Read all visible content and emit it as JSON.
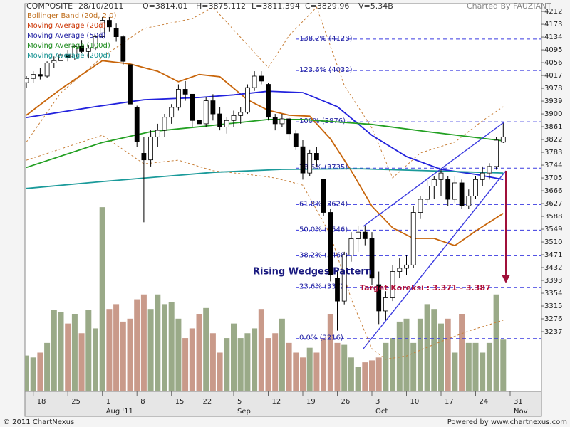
{
  "chart_data": {
    "type": "candlestick",
    "header": {
      "symbol": "COMPOSITE",
      "date": "28/10/2011",
      "open": "O=3814.01",
      "high": "H=3875.112",
      "low": "L=3811.394",
      "close": "C=3829.96",
      "volume": "V=5.34B",
      "credit": "Charted By FAUZIANT"
    },
    "footer": {
      "left": "© 2011 ChartNexus",
      "right": "Powered by www.chartnexus.com"
    },
    "annotations": {
      "pattern": "Rising Wedges Pattern",
      "target": "Target Koreksi : 3.371 - 3.387"
    },
    "categories": [
      null,
      "18",
      null,
      null,
      null,
      null,
      "25",
      null,
      null,
      null,
      null,
      "1",
      null,
      null,
      null,
      null,
      "8",
      null,
      null,
      null,
      null,
      "15",
      null,
      null,
      null,
      "22",
      null,
      null,
      null,
      null,
      "5",
      null,
      null,
      null,
      null,
      "12",
      null,
      null,
      null,
      null,
      "19",
      null,
      null,
      null,
      null,
      "26",
      null,
      null,
      null,
      null,
      "3",
      null,
      null,
      null,
      null,
      "10",
      null,
      null,
      null,
      null,
      "17",
      null,
      null,
      null,
      null,
      "24",
      null,
      null,
      null,
      null,
      "31"
    ],
    "months": [
      null,
      null,
      null,
      null,
      null,
      null,
      null,
      null,
      null,
      null,
      null,
      "Aug '11",
      null,
      null,
      null,
      null,
      null,
      null,
      null,
      null,
      null,
      null,
      null,
      null,
      null,
      null,
      null,
      null,
      null,
      null,
      "Sep",
      null,
      null,
      null,
      null,
      null,
      null,
      null,
      null,
      null,
      null,
      null,
      null,
      null,
      null,
      null,
      null,
      null,
      null,
      null,
      "Oct",
      null,
      null,
      null,
      null,
      null,
      null,
      null,
      null,
      null,
      null,
      null,
      null,
      null,
      null,
      null,
      null,
      null,
      null,
      null,
      "Nov"
    ],
    "open": [
      3995,
      4008,
      4020,
      4015,
      4055,
      4062,
      4080,
      4070,
      4105,
      4090,
      4100,
      4135,
      4185,
      4160,
      4135,
      4050,
      3920,
      3780,
      3760,
      3830,
      3850,
      3890,
      3920,
      3975,
      3960,
      3880,
      3870,
      3940,
      3900,
      3860,
      3880,
      3895,
      3905,
      3980,
      4015,
      3990,
      3890,
      3870,
      3885,
      3840,
      3800,
      3720,
      3780,
      3700,
      3600,
      3400,
      3330,
      3470,
      3520,
      3540,
      3520,
      3380,
      3300,
      3340,
      3420,
      3430,
      3440,
      3600,
      3640,
      3680,
      3700,
      3700,
      3640,
      3690,
      3620,
      3650,
      3700,
      3720,
      3740,
      3814.01,
      null
    ],
    "high": [
      4015,
      4030,
      4040,
      4060,
      4075,
      4085,
      4095,
      4110,
      4125,
      4110,
      4140,
      4195,
      4195,
      4175,
      4140,
      4055,
      3925,
      3830,
      3850,
      3870,
      3900,
      3930,
      3990,
      4000,
      3960,
      3900,
      3950,
      3960,
      3920,
      3890,
      3910,
      3920,
      3990,
      4030,
      4030,
      3995,
      3900,
      3900,
      3890,
      3850,
      3820,
      3790,
      3800,
      3700,
      3610,
      3420,
      3480,
      3540,
      3560,
      3560,
      3540,
      3420,
      3360,
      3440,
      3460,
      3470,
      3620,
      3650,
      3700,
      3710,
      3730,
      3710,
      3710,
      3700,
      3670,
      3710,
      3740,
      3750,
      3830,
      3875.112,
      null
    ],
    "low": [
      3980,
      3995,
      4005,
      4010,
      4040,
      4050,
      4060,
      4065,
      4085,
      4070,
      4095,
      4130,
      4150,
      4120,
      4050,
      3920,
      3800,
      3570,
      3740,
      3800,
      3830,
      3870,
      3910,
      3940,
      3860,
      3840,
      3860,
      3880,
      3850,
      3840,
      3860,
      3870,
      3900,
      3970,
      3990,
      3880,
      3850,
      3860,
      3820,
      3790,
      3700,
      3710,
      3740,
      3590,
      3390,
      3240,
      3320,
      3450,
      3480,
      3500,
      3380,
      3260,
      3270,
      3330,
      3400,
      3410,
      3430,
      3580,
      3630,
      3640,
      3650,
      3620,
      3630,
      3610,
      3610,
      3640,
      3680,
      3700,
      3730,
      3811.394,
      null
    ],
    "close": [
      4008,
      4020,
      4015,
      4055,
      4062,
      4080,
      4070,
      4105,
      4090,
      4100,
      4135,
      4185,
      4165,
      4135,
      4060,
      3930,
      3815,
      3760,
      3830,
      3850,
      3890,
      3920,
      3975,
      3960,
      3880,
      3870,
      3940,
      3900,
      3860,
      3880,
      3895,
      3905,
      3980,
      4015,
      4000,
      3890,
      3870,
      3885,
      3840,
      3800,
      3720,
      3780,
      3760,
      3600,
      3410,
      3330,
      3470,
      3520,
      3540,
      3520,
      3400,
      3300,
      3340,
      3420,
      3430,
      3440,
      3600,
      3640,
      3680,
      3700,
      3720,
      3640,
      3690,
      3620,
      3650,
      3700,
      3720,
      3740,
      3820,
      3829.96,
      null
    ],
    "volume": [
      3.7,
      3.5,
      4.0,
      5.0,
      8.4,
      8.2,
      7.0,
      8.0,
      6.0,
      8.4,
      6.5,
      19.0,
      8.5,
      9.0,
      7.2,
      7.5,
      9.5,
      10.0,
      8.5,
      10.0,
      9.0,
      9.2,
      7.5,
      5.5,
      6.5,
      8.0,
      8.6,
      6.0,
      4.0,
      5.5,
      7.0,
      5.5,
      6.0,
      6.5,
      8.5,
      5.5,
      6.0,
      7.5,
      5.0,
      4.0,
      3.5,
      4.5,
      4.0,
      5.5,
      8.0,
      5.0,
      4.8,
      3.5,
      2.5,
      3.0,
      3.2,
      3.5,
      5.0,
      5.5,
      7.2,
      7.5,
      5.0,
      7.5,
      9.0,
      8.5,
      7.0,
      7.5,
      4.0,
      8.0,
      5.0,
      5.0,
      4.0,
      5.0,
      10.0,
      5.34,
      null
    ],
    "up_color": "#ffffff",
    "down_color": "#000000",
    "volume_up_color": "#9aaa88",
    "volume_down_color": "#c99a8a",
    "ylim": [
      3055,
      4236
    ],
    "vlim": [
      0,
      40
    ],
    "yticks": [
      3237,
      3276,
      3315,
      3354,
      3393,
      3432,
      3471,
      3510,
      3549,
      3588,
      3627,
      3666,
      3705,
      3744,
      3783,
      3822,
      3861,
      3900,
      3939,
      3978,
      4017,
      4056,
      4095,
      4134,
      4173,
      4212
    ],
    "series": [
      {
        "name": "Bollinger Band (20d, 2.0)",
        "color": "#c8803a",
        "legend_color": "#c07020",
        "dashed": true,
        "bands": [
          {
            "x": [
              0,
              5,
              11,
              17,
              24,
              27,
              35,
              38,
              42,
              46,
              50,
              53,
              57,
              62,
              66,
              69
            ],
            "values": [
              3814,
              3965,
              4073,
              4160,
              4190,
              4225,
              4041,
              4138,
              4225,
              3987,
              3857,
              3705,
              3781,
              3814,
              3879,
              3922
            ]
          },
          {
            "x": [
              0,
              11,
              17,
              22,
              27,
              32,
              36,
              40,
              44,
              47,
              50,
              52,
              55,
              60,
              64,
              69
            ],
            "values": [
              3759,
              3835,
              3748,
              3759,
              3727,
              3716,
              3705,
              3683,
              3532,
              3337,
              3185,
              3153,
              3163,
              3207,
              3239,
              3272
            ]
          }
        ]
      },
      {
        "name": "Moving Average (20d)",
        "color": "#c8650a",
        "legend_color": "#cc3300",
        "x": [
          0,
          5,
          11,
          15,
          19,
          22,
          25,
          28,
          32,
          35,
          38,
          41,
          44,
          47,
          50,
          53,
          56,
          59,
          62,
          65,
          69
        ],
        "values": [
          3896,
          3976,
          4062,
          4052,
          4030,
          3998,
          4020,
          4013,
          3943,
          3911,
          3896,
          3893,
          3824,
          3727,
          3619,
          3553,
          3521,
          3521,
          3499,
          3543,
          3597
        ]
      },
      {
        "name": "Moving Average (50d)",
        "color": "#2222dd",
        "legend_color": "#1a1aa0",
        "x": [
          0,
          10,
          17,
          25,
          30,
          35,
          40,
          45,
          50,
          55,
          60,
          65,
          69
        ],
        "values": [
          3889,
          3922,
          3943,
          3950,
          3958,
          3969,
          3965,
          3922,
          3835,
          3770,
          3731,
          3716,
          3700
        ]
      },
      {
        "name": "Moving Average (100d)",
        "color": "#22a022",
        "legend_color": "#1a8a1a",
        "x": [
          0,
          11,
          18,
          25,
          35,
          40,
          50,
          58,
          69
        ],
        "values": [
          3737,
          3813,
          3846,
          3861,
          3883,
          3883,
          3868,
          3846,
          3818
        ]
      },
      {
        "name": "Moving Average (200d)",
        "color": "#1a9a9a",
        "legend_color": "#109090",
        "x": [
          0,
          11,
          27,
          37,
          48,
          58,
          69
        ],
        "values": [
          3673,
          3694,
          3722,
          3731,
          3733,
          3727,
          3720
        ]
      }
    ],
    "fib_color": "#3a3ae0",
    "fib_levels": [
      {
        "label": "138.2%  (4128)",
        "value": 4128
      },
      {
        "label": "123.6%  (4032)",
        "value": 4032
      },
      {
        "label": "100%  (3876)",
        "value": 3876
      },
      {
        "label": "78.6%  (3735)",
        "value": 3735
      },
      {
        "label": "61.8%  (3624)",
        "value": 3624
      },
      {
        "label": "50.0%  (3546)",
        "value": 3546
      },
      {
        "label": "38.2%  (3468)",
        "value": 3468
      },
      {
        "label": "23.6%  (3372)",
        "value": 3372
      },
      {
        "label": "0.0%  (3216)",
        "value": 3216
      }
    ]
  }
}
